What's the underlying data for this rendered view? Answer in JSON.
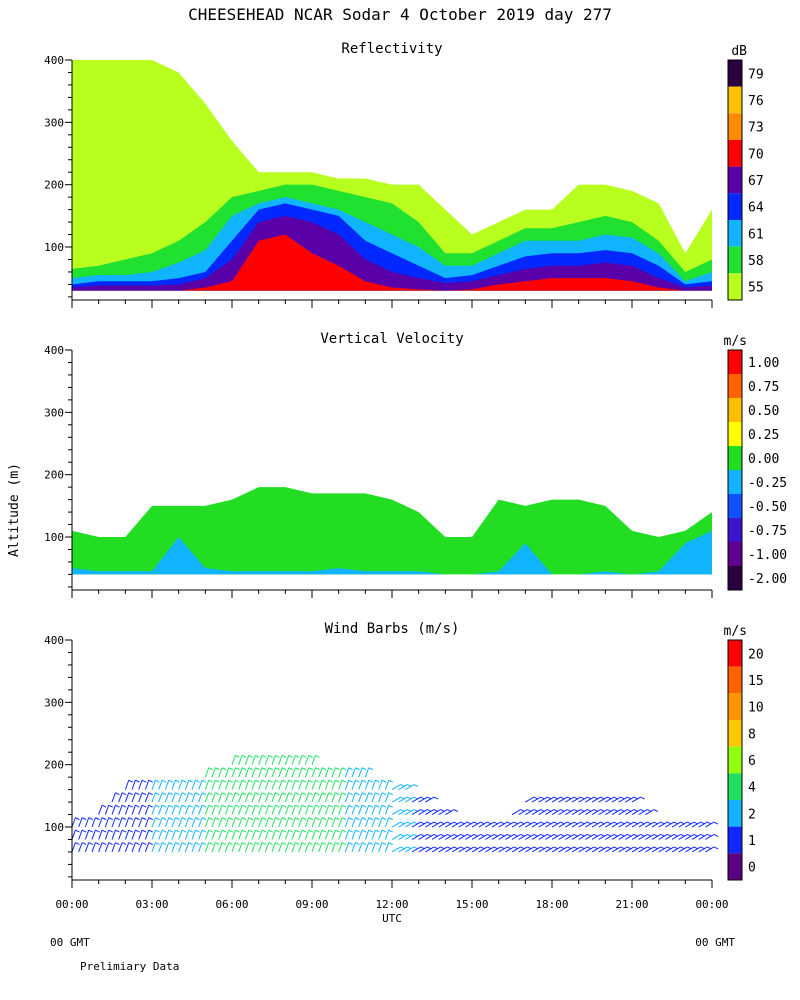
{
  "title": "CHEESEHEAD  NCAR Sodar   4 October 2019  day 277",
  "y_axis_label": "Altitude (m)",
  "x_axis_label": "UTC",
  "x_ticks": [
    "00:00",
    "03:00",
    "06:00",
    "09:00",
    "12:00",
    "15:00",
    "18:00",
    "21:00",
    "00:00"
  ],
  "footer_left": "00 GMT",
  "footer_right": "00 GMT",
  "footnote": "Prelimiary Data",
  "chart_data": [
    {
      "type": "heatmap",
      "title": "Reflectivity",
      "ylabel": "Altitude (m)",
      "xlabel": "UTC",
      "x_range_hours": [
        0,
        24
      ],
      "ylim": [
        15,
        400
      ],
      "y_ticks": [
        100,
        200,
        300,
        400
      ],
      "colorbar": {
        "unit": "dB",
        "labels": [
          "79",
          "76",
          "73",
          "70",
          "67",
          "64",
          "61",
          "58",
          "55"
        ],
        "colors": [
          "#2a0040",
          "#ffc000",
          "#ff8c00",
          "#ff0000",
          "#5a00a8",
          "#0028ff",
          "#10b4ff",
          "#20e030",
          "#b8ff20"
        ]
      },
      "x_hours": [
        0,
        1,
        2,
        3,
        4,
        5,
        6,
        7,
        8,
        9,
        10,
        11,
        12,
        13,
        14,
        15,
        16,
        17,
        18,
        19,
        20,
        21,
        22,
        23,
        24
      ],
      "series": [
        {
          "name": "55 dB top (m)",
          "values": [
            400,
            400,
            400,
            400,
            380,
            330,
            270,
            220,
            220,
            220,
            210,
            210,
            200,
            200,
            160,
            120,
            140,
            160,
            160,
            200,
            200,
            190,
            170,
            90,
            160
          ]
        },
        {
          "name": "58 dB top (m)",
          "values": [
            65,
            70,
            80,
            90,
            110,
            140,
            180,
            190,
            200,
            200,
            190,
            180,
            170,
            140,
            90,
            90,
            110,
            130,
            130,
            140,
            150,
            140,
            110,
            60,
            80
          ]
        },
        {
          "name": "61 dB top (m)",
          "values": [
            50,
            55,
            55,
            60,
            75,
            95,
            150,
            170,
            180,
            170,
            160,
            140,
            120,
            100,
            70,
            70,
            90,
            110,
            110,
            110,
            120,
            115,
            90,
            45,
            60
          ]
        },
        {
          "name": "64 dB top (m)",
          "values": [
            40,
            45,
            45,
            45,
            50,
            60,
            110,
            160,
            170,
            160,
            150,
            110,
            90,
            70,
            50,
            55,
            70,
            85,
            90,
            90,
            95,
            90,
            70,
            40,
            45
          ]
        },
        {
          "name": "67 dB top (m)",
          "values": [
            35,
            38,
            38,
            38,
            40,
            50,
            80,
            140,
            150,
            140,
            120,
            80,
            60,
            50,
            42,
            45,
            55,
            65,
            70,
            70,
            75,
            70,
            50,
            35,
            38
          ]
        },
        {
          "name": "70 dB top (m)",
          "values": [
            30,
            30,
            30,
            30,
            30,
            35,
            45,
            110,
            120,
            90,
            70,
            45,
            35,
            32,
            30,
            32,
            40,
            45,
            50,
            50,
            50,
            45,
            35,
            30,
            30
          ]
        }
      ]
    },
    {
      "type": "heatmap",
      "title": "Vertical Velocity",
      "ylabel": "Altitude (m)",
      "xlabel": "UTC",
      "x_range_hours": [
        0,
        24
      ],
      "ylim": [
        15,
        400
      ],
      "y_ticks": [
        100,
        200,
        300,
        400
      ],
      "colorbar": {
        "unit": "m/s",
        "labels": [
          "1.00",
          "0.75",
          "0.50",
          "0.25",
          "0.00",
          "-0.25",
          "-0.50",
          "-0.75",
          "-1.00",
          "-2.00"
        ],
        "colors": [
          "#ff0000",
          "#ff6400",
          "#ffbe00",
          "#ffff00",
          "#22dd22",
          "#10b4ff",
          "#1050ff",
          "#3c14d0",
          "#600090",
          "#2a0040"
        ]
      },
      "x_hours": [
        0,
        1,
        2,
        3,
        4,
        5,
        6,
        7,
        8,
        9,
        10,
        11,
        12,
        13,
        14,
        15,
        16,
        17,
        18,
        19,
        20,
        21,
        22,
        23,
        24
      ],
      "series": [
        {
          "name": "data top (m)",
          "values": [
            110,
            100,
            100,
            150,
            150,
            150,
            160,
            180,
            180,
            170,
            170,
            170,
            160,
            140,
            100,
            100,
            160,
            150,
            160,
            160,
            150,
            110,
            100,
            110,
            140
          ]
        },
        {
          "name": "negative (-0.25) top (m)",
          "values": [
            50,
            45,
            45,
            45,
            100,
            50,
            45,
            45,
            45,
            45,
            50,
            45,
            45,
            45,
            40,
            40,
            45,
            90,
            40,
            40,
            45,
            40,
            45,
            90,
            110
          ]
        }
      ]
    },
    {
      "type": "scatter",
      "title": "Wind Barbs (m/s)",
      "ylabel": "Altitude (m)",
      "xlabel": "UTC",
      "x_range_hours": [
        0,
        24
      ],
      "ylim": [
        15,
        400
      ],
      "y_ticks": [
        100,
        200,
        300,
        400
      ],
      "colorbar": {
        "unit": "m/s",
        "labels": [
          "20",
          "15",
          "10",
          "8",
          "6",
          "4",
          "2",
          "1",
          "0"
        ],
        "colors": [
          "#ff0000",
          "#ff6400",
          "#ff9600",
          "#ffc800",
          "#90ff10",
          "#20e060",
          "#10b4ff",
          "#1028ff",
          "#5a0080"
        ]
      },
      "profile_hours": [
        0,
        1,
        2,
        3,
        4,
        5,
        6,
        7,
        8,
        9,
        10,
        11,
        12,
        13,
        14,
        15,
        16,
        17,
        18,
        19,
        20,
        21,
        22,
        23,
        24
      ],
      "max_height_m": [
        110,
        120,
        160,
        170,
        170,
        180,
        200,
        200,
        200,
        200,
        190,
        180,
        170,
        150,
        120,
        110,
        110,
        140,
        150,
        150,
        150,
        140,
        110,
        100,
        110
      ],
      "speed_ms": [
        1.5,
        1.5,
        1.5,
        2,
        3,
        4,
        5,
        5,
        5,
        4,
        4,
        3,
        3,
        1.5,
        1.5,
        1.2,
        1,
        1,
        1,
        1,
        1,
        1,
        1,
        1,
        1
      ]
    }
  ]
}
